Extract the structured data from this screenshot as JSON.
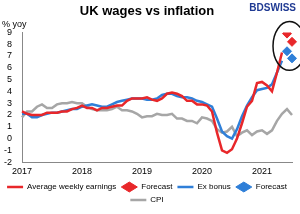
{
  "chart_data": {
    "type": "line",
    "title": "UK wages vs inflation",
    "y_label": "% yoy",
    "logo": "BDSWISS",
    "categories": [
      "2017",
      null,
      null,
      null,
      null,
      null,
      null,
      null,
      null,
      null,
      null,
      null,
      "2018",
      null,
      null,
      null,
      null,
      null,
      null,
      null,
      null,
      null,
      null,
      null,
      "2019",
      null,
      null,
      null,
      null,
      null,
      null,
      null,
      null,
      null,
      null,
      null,
      "2020",
      null,
      null,
      null,
      null,
      null,
      null,
      null,
      null,
      null,
      null,
      null,
      "2021",
      null,
      null,
      null,
      null,
      null,
      null
    ],
    "series": [
      {
        "name": "Average weekly earnings",
        "color": "#e8272a",
        "line_style": "solid",
        "values": [
          2.3,
          2.1,
          2.0,
          2.0,
          2.0,
          2.2,
          2.2,
          2.2,
          2.3,
          2.3,
          2.5,
          2.6,
          2.8,
          2.6,
          2.6,
          2.4,
          2.6,
          2.6,
          2.7,
          2.8,
          2.8,
          3.2,
          3.4,
          3.4,
          3.4,
          3.5,
          3.3,
          3.2,
          3.4,
          3.8,
          3.9,
          3.8,
          3.6,
          3.2,
          3.2,
          2.9,
          2.9,
          2.8,
          2.3,
          0.5,
          -1.0,
          -1.2,
          -0.9,
          0.0,
          1.3,
          2.7,
          3.2,
          4.7,
          4.8,
          4.5,
          4.0,
          5.6,
          7.3,
          null,
          null
        ]
      },
      {
        "name": "Forecast",
        "color": "#e8272a",
        "marker": "diamond",
        "line_style": "none",
        "values": [
          null,
          null,
          null,
          null,
          null,
          null,
          null,
          null,
          null,
          null,
          null,
          null,
          null,
          null,
          null,
          null,
          null,
          null,
          null,
          null,
          null,
          null,
          null,
          null,
          null,
          null,
          null,
          null,
          null,
          null,
          null,
          null,
          null,
          null,
          null,
          null,
          null,
          null,
          null,
          null,
          null,
          null,
          null,
          null,
          null,
          null,
          null,
          null,
          null,
          null,
          null,
          null,
          null,
          8.9,
          8.2
        ]
      },
      {
        "name": "Ex bonus",
        "color": "#2f7fd8",
        "line_style": "solid",
        "values": [
          2.1,
          2.1,
          1.8,
          1.8,
          2.0,
          2.1,
          2.2,
          2.2,
          2.3,
          2.4,
          2.5,
          2.5,
          2.7,
          2.8,
          2.9,
          2.8,
          2.7,
          2.7,
          2.9,
          3.1,
          3.2,
          3.3,
          3.4,
          3.4,
          3.4,
          3.3,
          3.3,
          3.4,
          3.7,
          3.8,
          3.8,
          3.6,
          3.5,
          3.5,
          3.4,
          3.2,
          3.1,
          2.9,
          2.7,
          1.7,
          0.6,
          0.2,
          0.0,
          0.8,
          1.9,
          2.8,
          3.5,
          4.1,
          4.2,
          4.3,
          4.6,
          5.6,
          6.6,
          null,
          null
        ]
      },
      {
        "name": "Forecast",
        "color": "#2f7fd8",
        "marker": "diamond",
        "line_style": "none",
        "values": [
          null,
          null,
          null,
          null,
          null,
          null,
          null,
          null,
          null,
          null,
          null,
          null,
          null,
          null,
          null,
          null,
          null,
          null,
          null,
          null,
          null,
          null,
          null,
          null,
          null,
          null,
          null,
          null,
          null,
          null,
          null,
          null,
          null,
          null,
          null,
          null,
          null,
          null,
          null,
          null,
          null,
          null,
          null,
          null,
          null,
          null,
          null,
          null,
          null,
          null,
          null,
          null,
          null,
          7.4,
          6.8
        ]
      },
      {
        "name": "CPI",
        "color": "#a6a6a6",
        "line_style": "solid",
        "values": [
          1.8,
          2.3,
          2.3,
          2.7,
          2.9,
          2.6,
          2.6,
          2.9,
          3.0,
          3.0,
          3.1,
          3.0,
          3.0,
          2.7,
          2.5,
          2.4,
          2.4,
          2.4,
          2.5,
          2.7,
          2.4,
          2.4,
          2.3,
          2.1,
          1.8,
          1.9,
          1.9,
          2.1,
          2.0,
          2.0,
          2.1,
          1.7,
          1.7,
          1.5,
          1.5,
          1.3,
          1.8,
          1.7,
          1.5,
          0.8,
          0.5,
          0.6,
          1.0,
          0.2,
          0.5,
          0.7,
          0.3,
          0.6,
          0.7,
          0.4,
          0.7,
          1.5,
          2.1,
          2.5,
          2.0
        ]
      }
    ],
    "ylim": [
      -2,
      9
    ],
    "yticks": [
      -2,
      -1,
      0,
      1,
      2,
      3,
      4,
      5,
      6,
      7,
      8,
      9
    ],
    "grid": false,
    "legend": "bottom"
  }
}
